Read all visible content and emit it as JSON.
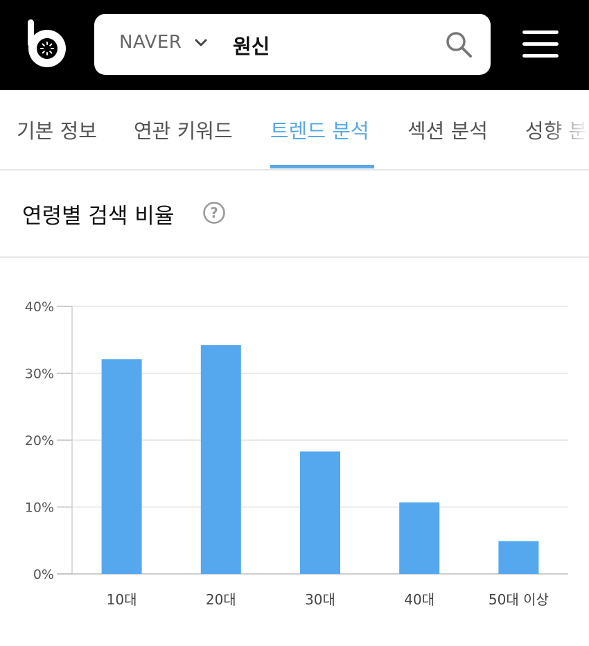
{
  "header": {
    "search": {
      "engine": "NAVER",
      "query": "원신"
    }
  },
  "tabs": [
    {
      "label": "기본 정보",
      "active": false
    },
    {
      "label": "연관 키워드",
      "active": false
    },
    {
      "label": "트렌드 분석",
      "active": true
    },
    {
      "label": "섹션 분석",
      "active": false
    },
    {
      "label": "성향 분석",
      "active": false
    }
  ],
  "section": {
    "title": "연령별 검색 비율"
  },
  "colors": {
    "accent": "#5aa8e6",
    "bar": "#55a8ee",
    "header_bg": "#000000"
  },
  "icons": {
    "logo": "b-logo-icon",
    "chevron": "chevron-down-icon",
    "search": "search-icon",
    "menu": "hamburger-menu-icon",
    "help": "help-circle-icon"
  },
  "chart_data": {
    "type": "bar",
    "title": "연령별 검색 비율",
    "categories": [
      "10대",
      "20대",
      "30대",
      "40대",
      "50대 이상"
    ],
    "values": [
      32.1,
      34.2,
      18.3,
      10.7,
      4.9
    ],
    "yticks": [
      "0%",
      "10%",
      "20%",
      "30%",
      "40%"
    ],
    "ylim": [
      0,
      40
    ],
    "grid": true,
    "legend": "none"
  }
}
